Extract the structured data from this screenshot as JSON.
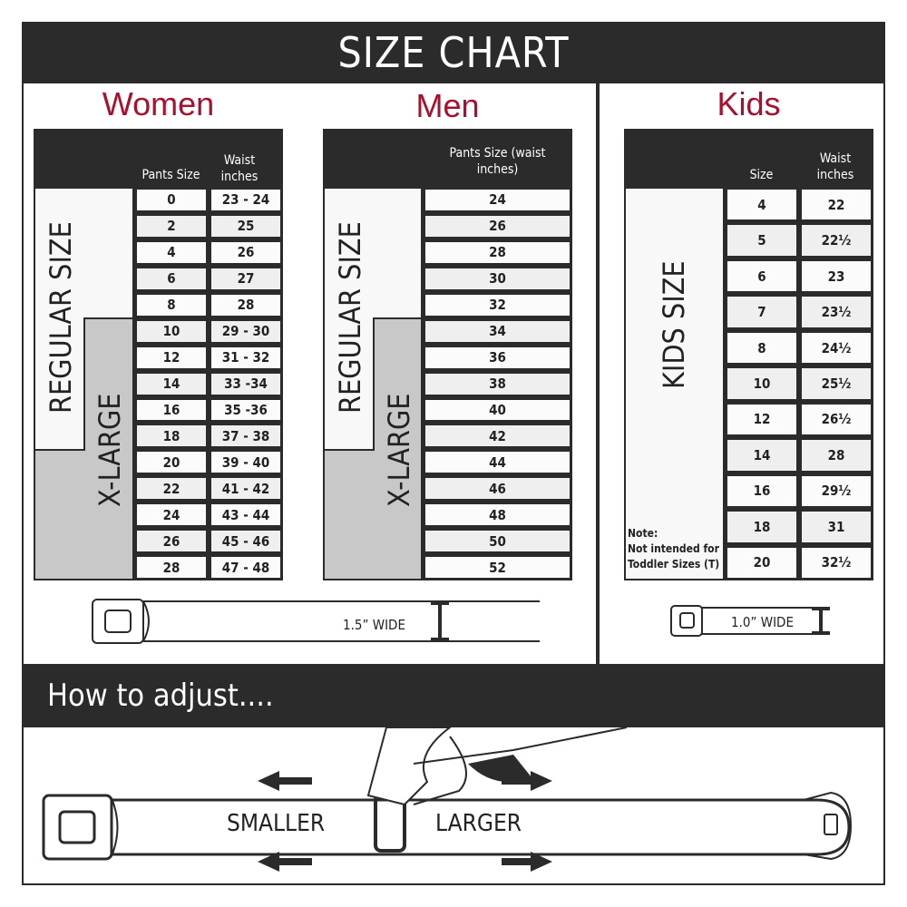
{
  "title": "SIZE CHART",
  "women": {
    "heading": "Women",
    "col_pants": "Pants Size",
    "col_waist": "Waist inches",
    "regular_label": "REGULAR SIZE",
    "xlarge_label": "X-LARGE",
    "rows": [
      [
        "0",
        "23 - 24"
      ],
      [
        "2",
        "25"
      ],
      [
        "4",
        "26"
      ],
      [
        "6",
        "27"
      ],
      [
        "8",
        "28"
      ],
      [
        "10",
        "29 - 30"
      ],
      [
        "12",
        "31 - 32"
      ],
      [
        "14",
        "33 -34"
      ],
      [
        "16",
        "35 -36"
      ],
      [
        "18",
        "37 - 38"
      ],
      [
        "20",
        "39 - 40"
      ],
      [
        "22",
        "41 - 42"
      ],
      [
        "24",
        "43 - 44"
      ],
      [
        "26",
        "45 - 46"
      ],
      [
        "28",
        "47 - 48"
      ]
    ],
    "belt_width": "1.5” WIDE"
  },
  "men": {
    "heading": "Men",
    "col_pants": "Pants Size (waist inches)",
    "regular_label": "REGULAR SIZE",
    "xlarge_label": "X-LARGE",
    "rows": [
      "24",
      "26",
      "28",
      "30",
      "32",
      "34",
      "36",
      "38",
      "40",
      "42",
      "44",
      "46",
      "48",
      "50",
      "52"
    ]
  },
  "kids": {
    "heading": "Kids",
    "col_size": "Size",
    "col_waist": "Waist inches",
    "size_label": "KIDS SIZE",
    "note_title": "Note:",
    "note_line1": "Not intended for",
    "note_line2": "Toddler Sizes (T)",
    "rows": [
      [
        "4",
        "22"
      ],
      [
        "5",
        "22½"
      ],
      [
        "6",
        "23"
      ],
      [
        "7",
        "23½"
      ],
      [
        "8",
        "24½"
      ],
      [
        "10",
        "25½"
      ],
      [
        "12",
        "26½"
      ],
      [
        "14",
        "28"
      ],
      [
        "16",
        "29½"
      ],
      [
        "18",
        "31"
      ],
      [
        "20",
        "32½"
      ]
    ],
    "belt_width": "1.0” WIDE"
  },
  "adjust": {
    "heading": "How to adjust....",
    "smaller": "SMALLER",
    "larger": "LARGER"
  },
  "colors": {
    "accent": "#a8102e",
    "dark": "#2b2b2b",
    "xlarge_fill": "#c8c8c8",
    "row_alt": "#efefef"
  }
}
